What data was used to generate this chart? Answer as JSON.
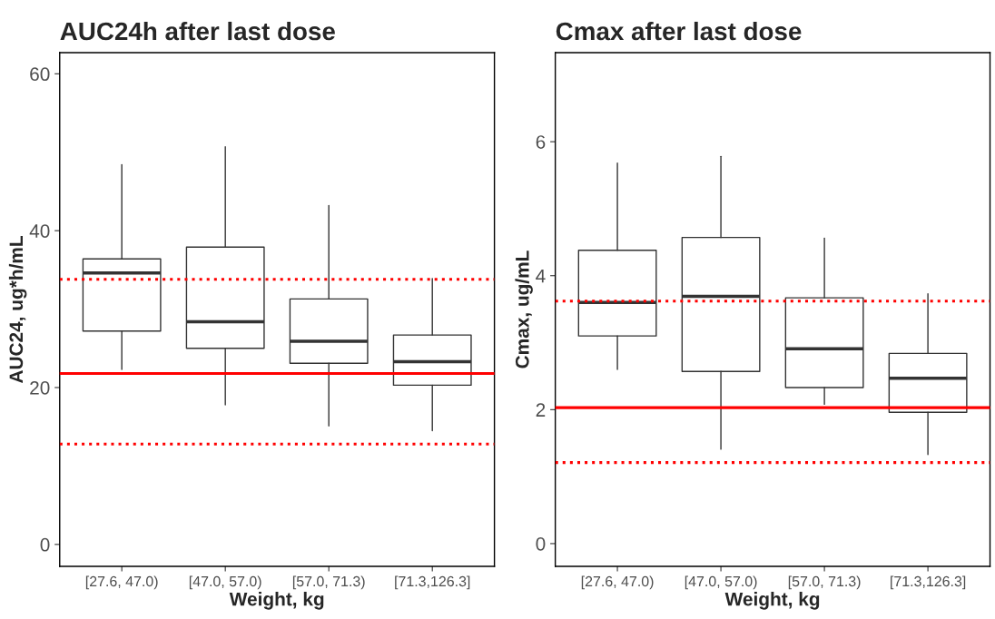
{
  "chart_data": [
    {
      "type": "box",
      "title": "AUC24h after last dose",
      "xlabel": "Weight, kg",
      "ylabel": "AUC24, ug*h/mL",
      "categories": [
        "[27.6, 47.0)",
        "[47.0, 57.0)",
        "[57.0, 71.3)",
        "[71.3,126.3]"
      ],
      "boxes": [
        {
          "low": 22.3,
          "q1": 27.2,
          "median": 34.6,
          "q3": 36.4,
          "high": 48.4
        },
        {
          "low": 17.8,
          "q1": 25.0,
          "median": 28.4,
          "q3": 37.9,
          "high": 50.7
        },
        {
          "low": 15.1,
          "q1": 23.1,
          "median": 25.9,
          "q3": 31.3,
          "high": 43.2
        },
        {
          "low": 14.5,
          "q1": 20.3,
          "median": 23.3,
          "q3": 26.7,
          "high": 33.9
        }
      ],
      "ylim": [
        -2.8,
        62.7
      ],
      "yticks": [
        0,
        20,
        40,
        60
      ],
      "grid": false,
      "ref_lines": [
        {
          "axis": "y",
          "value": 21.8,
          "color": "#ff0000",
          "line_style": "solid"
        },
        {
          "axis": "y",
          "value": 33.8,
          "color": "#ff0000",
          "line_style": "dotted"
        },
        {
          "axis": "y",
          "value": 12.8,
          "color": "#ff0000",
          "line_style": "dotted"
        }
      ]
    },
    {
      "type": "box",
      "title": "Cmax after last dose",
      "xlabel": "Weight, kg",
      "ylabel": "Cmax, ug/mL",
      "categories": [
        "[27.6, 47.0)",
        "[47.0, 57.0)",
        "[57.0, 71.3)",
        "[71.3,126.3]"
      ],
      "boxes": [
        {
          "low": 2.6,
          "q1": 3.1,
          "median": 3.6,
          "q3": 4.38,
          "high": 5.68
        },
        {
          "low": 1.41,
          "q1": 2.57,
          "median": 3.69,
          "q3": 4.57,
          "high": 5.78
        },
        {
          "low": 2.08,
          "q1": 2.33,
          "median": 2.91,
          "q3": 3.67,
          "high": 4.56
        },
        {
          "low": 1.33,
          "q1": 1.96,
          "median": 2.47,
          "q3": 2.84,
          "high": 3.73
        }
      ],
      "ylim": [
        -0.34,
        7.33
      ],
      "yticks": [
        0,
        2,
        4,
        6
      ],
      "grid": false,
      "ref_lines": [
        {
          "axis": "y",
          "value": 2.03,
          "color": "#ff0000",
          "line_style": "solid"
        },
        {
          "axis": "y",
          "value": 3.62,
          "color": "#ff0000",
          "line_style": "dotted"
        },
        {
          "axis": "y",
          "value": 1.21,
          "color": "#ff0000",
          "line_style": "dotted"
        }
      ]
    }
  ]
}
